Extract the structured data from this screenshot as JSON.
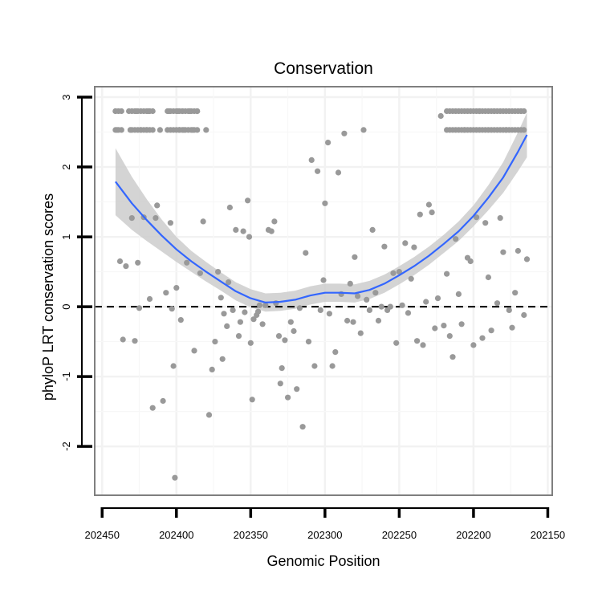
{
  "chart_data": {
    "type": "scatter",
    "title": "Conservation",
    "xlabel": "Genomic Position",
    "ylabel": "phyloP LRT conservation scores",
    "x_reversed": true,
    "xlim": [
      202455,
      202147
    ],
    "ylim": [
      -2.7,
      3.15
    ],
    "x_ticks": [
      202450,
      202400,
      202350,
      202300,
      202250,
      202200,
      202150
    ],
    "x_tick_labels": [
      "202450",
      "202400",
      "202350",
      "202300",
      "202250",
      "202200",
      "202150"
    ],
    "y_ticks": [
      -2,
      -1,
      0,
      1,
      2,
      3
    ],
    "y_tick_labels": [
      "-2",
      "-1",
      "0",
      "1",
      "2",
      "3"
    ],
    "reference_line": {
      "y": 0,
      "style": "dashed",
      "color": "#000000"
    },
    "colors": {
      "points": "#999999",
      "smooth": "#3366ff",
      "band": "#cccccc",
      "frame": "#7f7f7f",
      "grid": "#f2f2f2"
    },
    "points_x": [
      202441,
      202440,
      202438,
      202436,
      202434,
      202432,
      202431,
      202430,
      202428,
      202427,
      202426,
      202425,
      202424,
      202422,
      202420,
      202419,
      202418,
      202416,
      202414,
      202413,
      202411,
      202409,
      202407,
      202405,
      202404,
      202403,
      202402,
      202401,
      202400,
      202399,
      202398,
      202397,
      202396,
      202395,
      202393,
      202391,
      202389,
      202388,
      202386,
      202384,
      202382,
      202380,
      202378,
      202376,
      202374,
      202372,
      202370,
      202369,
      202368,
      202366,
      202365,
      202364,
      202362,
      202360,
      202358,
      202357,
      202355,
      202354,
      202352,
      202351,
      202350,
      202349,
      202348,
      202346,
      202345,
      202344,
      202342,
      202340,
      202338,
      202336,
      202334,
      202333,
      202331,
      202330,
      202329,
      202327,
      202325,
      202323,
      202321,
      202319,
      202317,
      202315,
      202313,
      202311,
      202309,
      202307,
      202305,
      202303,
      202301,
      202300,
      202298,
      202297,
      202295,
      202293,
      202291,
      202289,
      202287,
      202285,
      202283,
      202281,
      202280,
      202278,
      202276,
      202274,
      202272,
      202270,
      202268,
      202266,
      202264,
      202262,
      202260,
      202258,
      202256,
      202254,
      202252,
      202250,
      202248,
      202246,
      202244,
      202242,
      202240,
      202238,
      202236,
      202234,
      202232,
      202230,
      202228,
      202226,
      202224,
      202222,
      202220,
      202218,
      202216,
      202214,
      202212,
      202210,
      202208,
      202206,
      202204,
      202202,
      202200,
      202198,
      202196,
      202194,
      202192,
      202190,
      202188,
      202186,
      202184,
      202182,
      202180,
      202178,
      202176,
      202174,
      202172,
      202170,
      202168,
      202166,
      202164
    ],
    "points_y": [
      2.8,
      2.53,
      0.65,
      -0.47,
      0.58,
      2.8,
      2.53,
      1.27,
      -0.49,
      2.8,
      0.63,
      -0.02,
      2.53,
      1.28,
      2.53,
      2.8,
      0.11,
      -1.45,
      1.27,
      1.45,
      2.53,
      -1.35,
      0.2,
      2.8,
      1.2,
      -0.03,
      -0.85,
      -2.45,
      0.27,
      2.8,
      2.53,
      -0.19,
      2.8,
      2.53,
      0.63,
      2.8,
      2.53,
      -0.63,
      2.8,
      0.48,
      1.22,
      2.53,
      -1.55,
      -0.9,
      -0.5,
      0.5,
      0.13,
      -0.75,
      -0.1,
      -0.28,
      0.35,
      1.42,
      -0.05,
      1.1,
      -0.42,
      -0.22,
      1.08,
      -0.08,
      1.52,
      1.0,
      -0.52,
      -1.33,
      -0.18,
      -0.12,
      -0.07,
      0.02,
      -0.25,
      0.02,
      1.1,
      1.08,
      1.22,
      0.05,
      -0.42,
      -1.1,
      -0.88,
      -0.48,
      -1.3,
      -0.22,
      -0.35,
      -1.18,
      -0.02,
      -1.72,
      0.77,
      -0.5,
      2.1,
      -0.85,
      1.94,
      -0.05,
      0.38,
      1.48,
      2.35,
      -0.1,
      -0.85,
      -0.65,
      1.92,
      0.18,
      2.48,
      -0.2,
      0.33,
      -0.22,
      0.71,
      0.15,
      -0.38,
      2.53,
      0.1,
      -0.05,
      1.1,
      0.2,
      -0.2,
      0.0,
      0.86,
      -0.05,
      0.0,
      0.48,
      -0.52,
      0.5,
      0.02,
      0.91,
      -0.09,
      0.4,
      0.85,
      -0.49,
      1.32,
      -0.55,
      0.07,
      1.46,
      1.35,
      -0.31,
      0.12,
      2.73,
      -0.27,
      0.47,
      -0.42,
      -0.72,
      0.97,
      0.18,
      -0.25,
      2.53,
      0.7,
      0.65,
      -0.55,
      1.28,
      2.8,
      -0.45,
      1.2,
      0.42,
      -0.34,
      2.8,
      0.05,
      1.27,
      0.78,
      2.53,
      -0.05,
      -0.3,
      0.2,
      0.8,
      2.8,
      -0.12,
      0.68,
      2.53,
      1.2,
      0.2,
      1.15
    ],
    "repeated_values": [
      2.8,
      2.53
    ],
    "repeated_x_left": [
      202441,
      202439,
      202437,
      202430,
      202428,
      202426,
      202424,
      202422,
      202420,
      202418,
      202416,
      202406,
      202404,
      202402,
      202400,
      202398,
      202396,
      202394,
      202392,
      202390,
      202388,
      202386
    ],
    "repeated_x_right": [
      202218,
      202216,
      202214,
      202212,
      202210,
      202208,
      202206,
      202204,
      202202,
      202200,
      202198,
      202196,
      202194,
      202192,
      202190,
      202188,
      202186,
      202184,
      202182,
      202180,
      202178,
      202176,
      202174,
      202172,
      202170,
      202168,
      202166
    ],
    "smooth_x": [
      202441,
      202430,
      202420,
      202410,
      202400,
      202390,
      202380,
      202370,
      202360,
      202350,
      202340,
      202330,
      202320,
      202310,
      202300,
      202290,
      202280,
      202270,
      202260,
      202250,
      202240,
      202230,
      202220,
      202210,
      202200,
      202190,
      202180,
      202170,
      202164
    ],
    "smooth_y": [
      1.79,
      1.48,
      1.24,
      1.02,
      0.82,
      0.65,
      0.5,
      0.36,
      0.22,
      0.12,
      0.06,
      0.07,
      0.1,
      0.16,
      0.2,
      0.2,
      0.19,
      0.24,
      0.33,
      0.45,
      0.58,
      0.73,
      0.9,
      1.08,
      1.3,
      1.56,
      1.85,
      2.22,
      2.46
    ],
    "band_half_width": [
      0.48,
      0.38,
      0.3,
      0.23,
      0.18,
      0.15,
      0.14,
      0.13,
      0.13,
      0.13,
      0.13,
      0.13,
      0.13,
      0.13,
      0.13,
      0.13,
      0.13,
      0.13,
      0.13,
      0.13,
      0.13,
      0.13,
      0.13,
      0.14,
      0.15,
      0.18,
      0.22,
      0.28,
      0.32
    ]
  }
}
